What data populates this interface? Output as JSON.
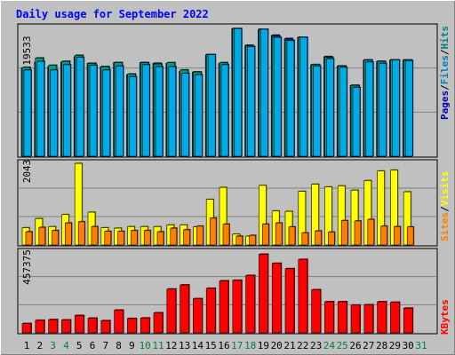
{
  "chart_data": [
    {
      "type": "bar",
      "title": "Daily usage for September 2022",
      "panel": "pages-files-hits",
      "y_max_label": "19533",
      "legend": [
        "Pages",
        "Files",
        "Hits"
      ],
      "legend_colors": {
        "Pages": "#0000a8",
        "Files": "#0080c0",
        "Hits": "#008080"
      },
      "bar_colors": {
        "hits": "#00a080",
        "files": "#00aae8",
        "pages": "#1030c0"
      },
      "categories": [
        "1",
        "2",
        "3",
        "4",
        "5",
        "6",
        "7",
        "8",
        "9",
        "10",
        "11",
        "12",
        "13",
        "14",
        "15",
        "16",
        "17",
        "18",
        "19",
        "20",
        "21",
        "22",
        "23",
        "24",
        "25",
        "26",
        "27",
        "28",
        "29",
        "30",
        "31"
      ],
      "series": [
        {
          "name": "Hits",
          "values": [
            13300,
            14700,
            13600,
            14200,
            15100,
            13900,
            13400,
            14000,
            12300,
            14000,
            13800,
            14000,
            12900,
            12600,
            15200,
            14000,
            19100,
            16500,
            19000,
            17900,
            17400,
            17800,
            13700,
            14800,
            13500,
            10600,
            14400,
            14200,
            14400,
            14400,
            null
          ]
        },
        {
          "name": "Files",
          "values": [
            12900,
            14200,
            12900,
            13700,
            14800,
            13600,
            12900,
            13500,
            11900,
            13700,
            13400,
            13400,
            12400,
            12200,
            15200,
            13700,
            19100,
            16400,
            19000,
            17800,
            17300,
            17800,
            13500,
            14600,
            13300,
            10300,
            14100,
            13900,
            14400,
            14300,
            null
          ]
        },
        {
          "name": "Pages",
          "values": [
            13200,
            14100,
            13400,
            14100,
            14900,
            13900,
            13400,
            14000,
            12200,
            14000,
            13900,
            13900,
            12700,
            12600,
            15200,
            13900,
            19100,
            16600,
            19000,
            18100,
            17600,
            17800,
            13700,
            14900,
            13500,
            10600,
            14400,
            14200,
            14400,
            14400,
            null
          ]
        }
      ]
    },
    {
      "type": "bar",
      "panel": "sites-visits",
      "y_max_label": "2043",
      "legend": [
        "Sites",
        "Visits"
      ],
      "legend_colors": {
        "Sites": "#ff8000",
        "Visits": "#ffff00"
      },
      "categories": [
        "1",
        "2",
        "3",
        "4",
        "5",
        "6",
        "7",
        "8",
        "9",
        "10",
        "11",
        "12",
        "13",
        "14",
        "15",
        "16",
        "17",
        "18",
        "19",
        "20",
        "21",
        "22",
        "23",
        "24",
        "25",
        "26",
        "27",
        "28",
        "29",
        "30",
        "31"
      ],
      "series": [
        {
          "name": "Visits",
          "values": [
            430,
            660,
            460,
            760,
            2040,
            820,
            430,
            420,
            460,
            460,
            460,
            500,
            500,
            450,
            1140,
            1440,
            270,
            220,
            1490,
            850,
            840,
            1340,
            1520,
            1450,
            1480,
            1370,
            1610,
            1850,
            1870,
            1330,
            null
          ]
        },
        {
          "name": "Sites",
          "values": [
            330,
            440,
            360,
            550,
            580,
            460,
            340,
            340,
            360,
            360,
            330,
            420,
            380,
            470,
            670,
            520,
            220,
            240,
            520,
            550,
            450,
            300,
            350,
            320,
            610,
            600,
            640,
            470,
            460,
            450,
            null
          ]
        }
      ]
    },
    {
      "type": "bar",
      "panel": "kbytes",
      "y_max_label": "457375",
      "legend": [
        "KBytes"
      ],
      "legend_colors": {
        "KBytes": "#ff0000"
      },
      "categories": [
        "1",
        "2",
        "3",
        "4",
        "5",
        "6",
        "7",
        "8",
        "9",
        "10",
        "11",
        "12",
        "13",
        "14",
        "15",
        "16",
        "17",
        "18",
        "19",
        "20",
        "21",
        "22",
        "23",
        "24",
        "25",
        "26",
        "27",
        "28",
        "29",
        "30",
        "31"
      ],
      "series": [
        {
          "name": "KBytes",
          "values": [
            52000,
            70000,
            74000,
            72000,
            97000,
            82000,
            68000,
            127000,
            80000,
            83000,
            112000,
            245000,
            268000,
            191000,
            249000,
            291000,
            294000,
            321000,
            440000,
            389000,
            359000,
            411000,
            241000,
            174000,
            174000,
            155000,
            157000,
            174000,
            171000,
            138000,
            null
          ]
        }
      ],
      "day_label_colors": {
        "weekday": "#000000",
        "weekend": "#008040"
      },
      "weekend_days": [
        "3",
        "4",
        "10",
        "11",
        "17",
        "18",
        "24",
        "25",
        "31"
      ]
    }
  ],
  "colors": {
    "background": "#c0c0c0",
    "title": "#0000ff",
    "plot_bg": "#c0c0c0",
    "grid": "#808080"
  }
}
